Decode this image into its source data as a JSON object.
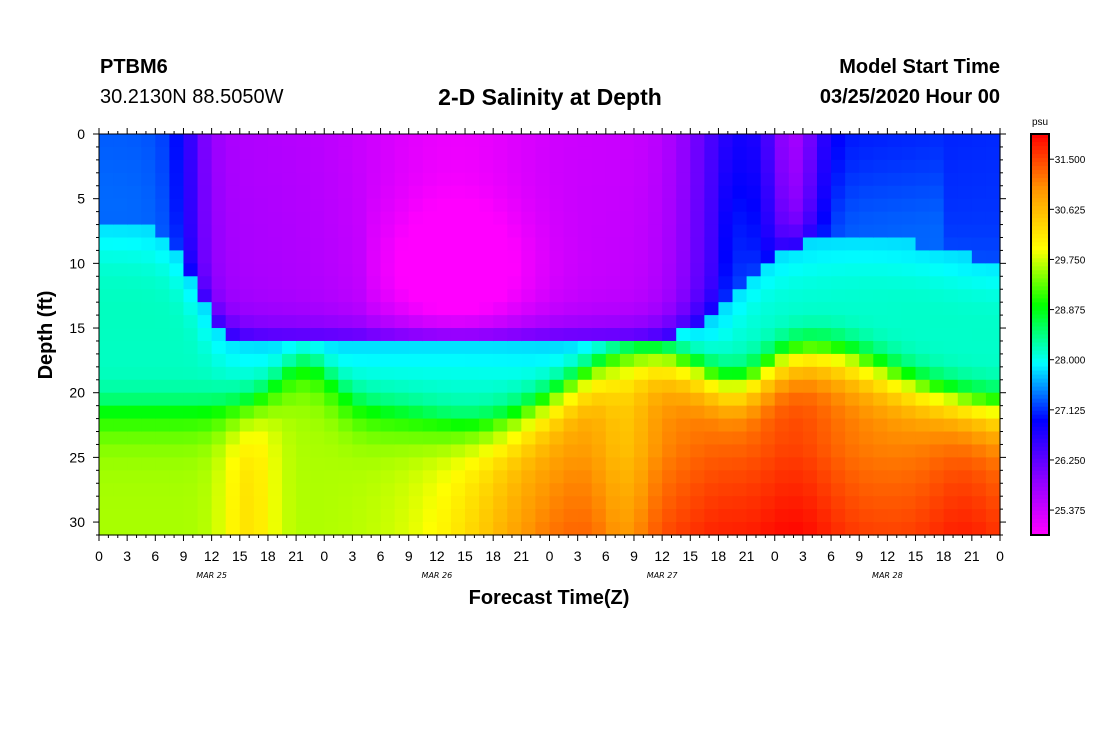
{
  "header": {
    "station": "PTBM6",
    "coords": "30.2130N 88.5050W",
    "title": "2-D Salinity at Depth",
    "model_start_label": "Model Start Time",
    "model_start_value": "03/25/2020 Hour 00"
  },
  "chart_data": {
    "type": "heatmap",
    "title": "2-D Salinity at Depth",
    "xlabel": "Forecast Time(Z)",
    "ylabel": "Depth (ft)",
    "x_range_hours": [
      0,
      96
    ],
    "x_ticks": [
      "0",
      "3",
      "6",
      "9",
      "12",
      "15",
      "18",
      "21",
      "0",
      "3",
      "6",
      "9",
      "12",
      "15",
      "18",
      "21",
      "0",
      "3",
      "6",
      "9",
      "12",
      "15",
      "18",
      "21",
      "0",
      "3",
      "6",
      "9",
      "12",
      "15",
      "18",
      "21",
      "0"
    ],
    "date_labels": [
      "MAR 25",
      "MAR 26",
      "MAR 27",
      "MAR 28"
    ],
    "y_range_ft": [
      0,
      31
    ],
    "y_ticks": [
      "0",
      "5",
      "10",
      "15",
      "20",
      "25",
      "30"
    ],
    "y_inverted": true,
    "colorbar": {
      "unit": "psu",
      "min": 24.94,
      "max": 31.94,
      "labels": [
        "31.500",
        "30.625",
        "29.750",
        "28.875",
        "28.000",
        "27.125",
        "26.250",
        "25.375"
      ],
      "colors": [
        "#ff00ff",
        "#8800ff",
        "#0000ff",
        "#00ffff",
        "#00ff00",
        "#ffff00",
        "#ff9900",
        "#ff0000"
      ]
    },
    "summary": {
      "surface_fresh_minimum_psu": 25.4,
      "bottom_max_psu": 31.5
    }
  }
}
